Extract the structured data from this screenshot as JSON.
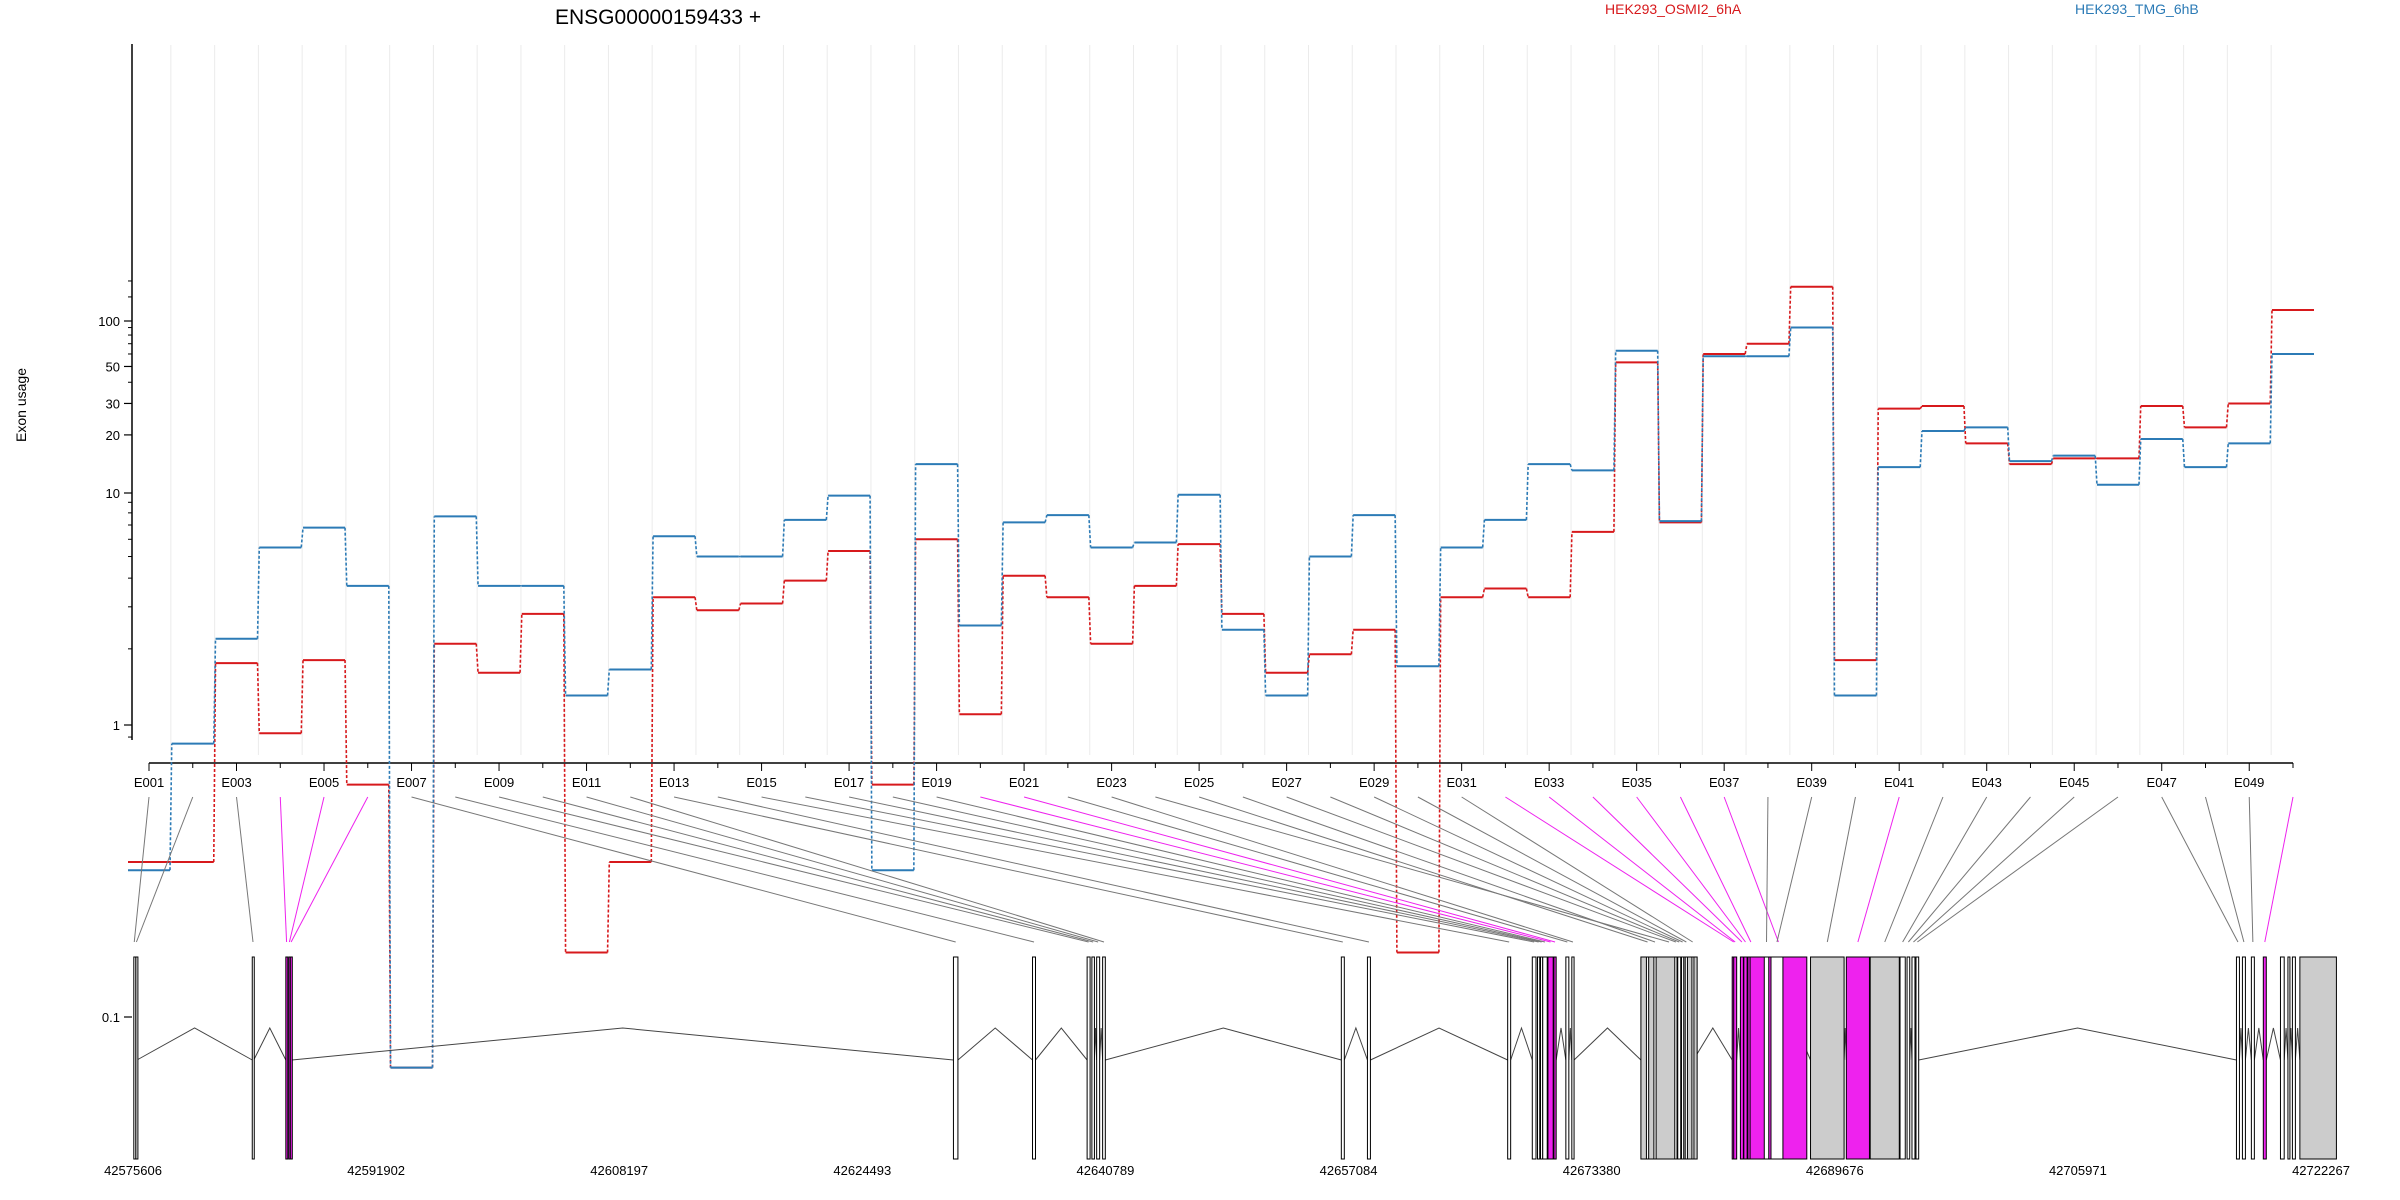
{
  "chart_data": {
    "type": "line",
    "title": "ENSG00000159433 +",
    "ylabel": "Exon usage",
    "yscale": "log",
    "yticks": [
      0.1,
      1,
      10,
      20,
      30,
      50,
      100
    ],
    "ytick_labels": [
      "0.1",
      "1",
      "10",
      "20",
      "30",
      "50",
      "100"
    ],
    "categories": [
      "E001",
      "E002",
      "E003",
      "E004",
      "E005",
      "E006",
      "E007",
      "E008",
      "E009",
      "E010",
      "E011",
      "E012",
      "E013",
      "E014",
      "E015",
      "E016",
      "E017",
      "E018",
      "E019",
      "E020",
      "E021",
      "E022",
      "E023",
      "E024",
      "E025",
      "E026",
      "E027",
      "E028",
      "E029",
      "E030",
      "E031",
      "E032",
      "E033",
      "E034",
      "E035",
      "E036",
      "E037",
      "E038",
      "E039",
      "E040",
      "E041",
      "E042",
      "E043",
      "E044",
      "E045",
      "E046",
      "E047",
      "E048",
      "E049",
      "E050"
    ],
    "xtick_labels": [
      "E001",
      "E003",
      "E005",
      "E007",
      "E009",
      "E011",
      "E013",
      "E015",
      "E017",
      "E019",
      "E021",
      "E023",
      "E025",
      "E027",
      "E029",
      "E031",
      "E033",
      "E035",
      "E037",
      "E039",
      "E041",
      "E043",
      "E045",
      "E047",
      "E049"
    ],
    "series": [
      {
        "name": "HEK293_OSMI2_6hA",
        "color": "#d7191c",
        "values": [
          0.32,
          0.32,
          1.75,
          0.93,
          1.8,
          0.6,
          0.07,
          2.1,
          1.6,
          2.8,
          0.16,
          0.32,
          3.3,
          2.9,
          3.1,
          3.9,
          5.3,
          0.6,
          6.0,
          1.1,
          4.1,
          3.3,
          2.1,
          3.7,
          5.7,
          2.8,
          1.6,
          1.9,
          2.4,
          0.16,
          3.3,
          3.6,
          3.3,
          6.5,
          53,
          7.2,
          60,
          70,
          180,
          1.8,
          28,
          29,
          18,
          14,
          15,
          15,
          29,
          22,
          30,
          120
        ]
      },
      {
        "name": "HEK293_TMG_6hB",
        "color": "#2c7bb6",
        "values": [
          0.3,
          0.85,
          2.2,
          5.5,
          6.8,
          3.7,
          0.07,
          7.7,
          3.7,
          3.7,
          1.3,
          1.65,
          6.2,
          5.0,
          5.0,
          7.4,
          9.7,
          0.3,
          14,
          2.5,
          7.2,
          7.8,
          5.5,
          5.8,
          9.8,
          2.4,
          1.3,
          5.0,
          7.8,
          1.7,
          5.5,
          7.4,
          14,
          13,
          63,
          7.3,
          58,
          58,
          90,
          1.3,
          13.5,
          21,
          22,
          14.5,
          15.5,
          11,
          19,
          13.5,
          18,
          60
        ]
      }
    ],
    "gene_model": {
      "coordinate_labels": [
        "42575606",
        "42591902",
        "42608197",
        "42624493",
        "42640789",
        "42657084",
        "42673380",
        "42689676",
        "42705971",
        "42722267"
      ],
      "coordinate_values": [
        42575606,
        42591902,
        42608197,
        42624493,
        42640789,
        42657084,
        42673380,
        42689676,
        42705971,
        42722267
      ],
      "highlight_color": "#ee22ee",
      "exon_color": "#cccccc",
      "highlighted_exons": [
        "E004",
        "E005",
        "E006",
        "E020",
        "E021",
        "E032",
        "E033",
        "E034",
        "E035",
        "E036",
        "E037",
        "E041",
        "E050"
      ],
      "exon_starts": [
        42575660,
        42575800,
        42583600,
        42585850,
        42586050,
        42586150,
        42630600,
        42635900,
        42639560,
        42639880,
        42640200,
        42640600,
        42656600,
        42658350,
        42667750,
        42669400,
        42669750,
        42669950,
        42670100,
        42670450,
        42670850,
        42671650,
        42672050,
        42676680,
        42677050,
        42677550,
        42678950,
        42679150,
        42679400,
        42679650,
        42680100,
        42682800,
        42682900,
        42683350,
        42683580,
        42683850,
        42684000,
        42684950,
        42685400,
        42688050,
        42690450,
        42692050,
        42694050,
        42694520,
        42694850,
        42695120,
        42716600,
        42717000,
        42717600,
        42718400,
        42719550,
        42720050,
        42720350,
        42720850
      ],
      "exon_ends": [
        42575720,
        42575870,
        42583700,
        42585950,
        42586130,
        42586260,
        42630900,
        42636100,
        42639760,
        42640050,
        42640400,
        42640780,
        42656800,
        42658550,
        42667950,
        42669650,
        42669900,
        42670100,
        42670400,
        42670800,
        42671000,
        42671850,
        42672200,
        42680450,
        42677200,
        42677700,
        42679100,
        42679350,
        42679550,
        42679800,
        42680200,
        42683000,
        42683100,
        42683550,
        42683800,
        42684250,
        42687800,
        42685250,
        42686200,
        42690300,
        42692000,
        42694000,
        42694400,
        42694700,
        42695050,
        42695300,
        42716800,
        42717200,
        42717800,
        42718600,
        42719800,
        42720150,
        42720550,
        42723300
      ]
    }
  }
}
